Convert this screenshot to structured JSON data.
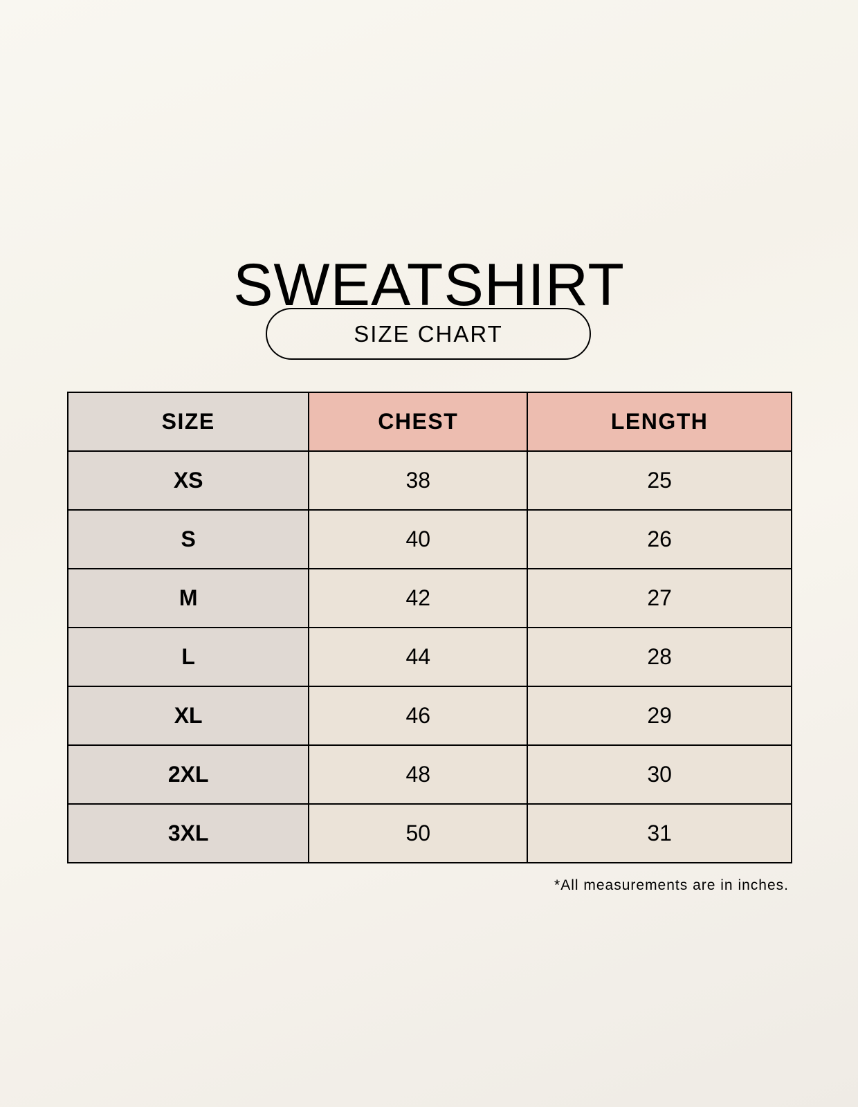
{
  "title": "SWEATSHIRT",
  "subtitle": "SIZE CHART",
  "table": {
    "headers": [
      "SIZE",
      "CHEST",
      "LENGTH"
    ],
    "rows": [
      [
        "XS",
        "38",
        "25"
      ],
      [
        "S",
        "40",
        "26"
      ],
      [
        "M",
        "42",
        "27"
      ],
      [
        "L",
        "44",
        "28"
      ],
      [
        "XL",
        "46",
        "29"
      ],
      [
        "2XL",
        "48",
        "30"
      ],
      [
        "3XL",
        "50",
        "31"
      ]
    ]
  },
  "footnote": "*All measurements are in inches.",
  "colors": {
    "size_column": "#e0d9d3",
    "header_accent": "#edbdb0",
    "cell": "#ebe3d8"
  }
}
